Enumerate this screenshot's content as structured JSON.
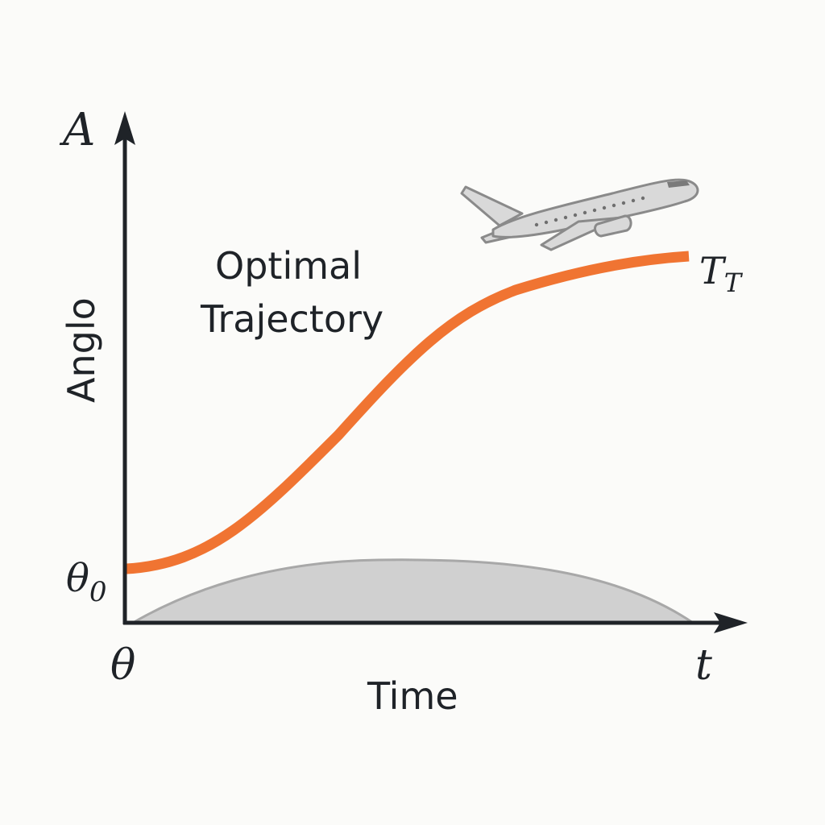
{
  "diagram": {
    "title_lines": [
      "Optimal",
      "Trajectory"
    ],
    "y_axis": {
      "symbol": "A",
      "label": "Anglo",
      "start_symbol": "θ",
      "start_subscript": "0"
    },
    "x_axis": {
      "origin_symbol": "θ",
      "end_symbol": "t",
      "label": "Time"
    },
    "curve_end_label": {
      "symbol": "T",
      "subscript": "T"
    },
    "colors": {
      "curve": "#f07432",
      "axes": "#1f2328",
      "hill_fill": "#d0d0d0",
      "hill_edge": "#a8a8a8",
      "airplane_fill": "#d9d9d9",
      "airplane_stroke": "#8a8a8a",
      "background": "#fbfbf9"
    },
    "icons": {
      "airplane": "airplane-icon"
    }
  }
}
